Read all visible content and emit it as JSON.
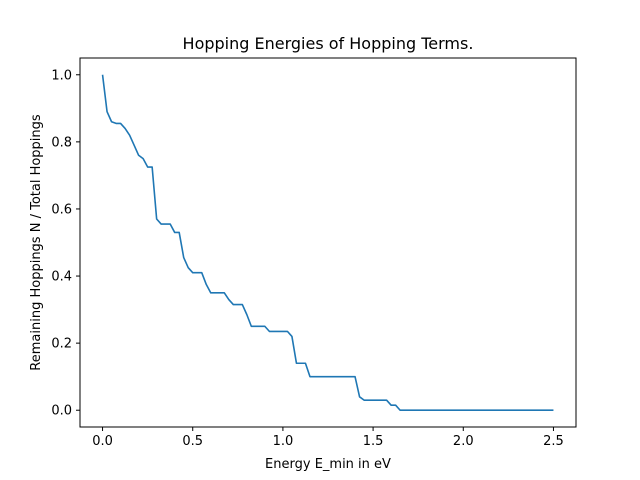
{
  "chart_data": {
    "type": "line",
    "title": "Hopping Energies of Hopping Terms.",
    "xlabel": "Energy E_min in eV",
    "ylabel": "Remaining Hoppings N / Total Hoppings",
    "xlim": [
      -0.125,
      2.625
    ],
    "ylim": [
      -0.05,
      1.05
    ],
    "xticks": [
      0.0,
      0.5,
      1.0,
      1.5,
      2.0,
      2.5
    ],
    "xtick_labels": [
      "0.0",
      "0.5",
      "1.0",
      "1.5",
      "2.0",
      "2.5"
    ],
    "yticks": [
      0.0,
      0.2,
      0.4,
      0.6,
      0.8,
      1.0
    ],
    "ytick_labels": [
      "0.0",
      "0.2",
      "0.4",
      "0.6",
      "0.8",
      "1.0"
    ],
    "grid": false,
    "colors": {
      "line": "#1f77b4"
    },
    "series": [
      {
        "x": [
          0.0,
          0.025,
          0.05,
          0.075,
          0.1,
          0.125,
          0.15,
          0.175,
          0.2,
          0.225,
          0.25,
          0.275,
          0.3,
          0.325,
          0.35,
          0.375,
          0.4,
          0.425,
          0.45,
          0.475,
          0.5,
          0.525,
          0.55,
          0.575,
          0.6,
          0.625,
          0.65,
          0.675,
          0.7,
          0.725,
          0.75,
          0.775,
          0.8,
          0.825,
          0.85,
          0.875,
          0.9,
          0.925,
          0.95,
          0.975,
          1.0,
          1.025,
          1.05,
          1.075,
          1.1,
          1.125,
          1.15,
          1.175,
          1.2,
          1.225,
          1.25,
          1.275,
          1.3,
          1.325,
          1.35,
          1.375,
          1.4,
          1.425,
          1.45,
          1.475,
          1.5,
          1.525,
          1.55,
          1.575,
          1.6,
          1.625,
          1.65,
          1.675,
          1.7,
          2.5
        ],
        "y": [
          1.0,
          0.89,
          0.86,
          0.855,
          0.855,
          0.84,
          0.82,
          0.79,
          0.76,
          0.75,
          0.725,
          0.725,
          0.57,
          0.555,
          0.555,
          0.555,
          0.53,
          0.53,
          0.455,
          0.425,
          0.41,
          0.41,
          0.41,
          0.375,
          0.35,
          0.35,
          0.35,
          0.35,
          0.33,
          0.315,
          0.315,
          0.315,
          0.285,
          0.25,
          0.25,
          0.25,
          0.25,
          0.235,
          0.235,
          0.235,
          0.235,
          0.235,
          0.22,
          0.14,
          0.14,
          0.14,
          0.1,
          0.1,
          0.1,
          0.1,
          0.1,
          0.1,
          0.1,
          0.1,
          0.1,
          0.1,
          0.1,
          0.04,
          0.03,
          0.03,
          0.03,
          0.03,
          0.03,
          0.03,
          0.015,
          0.015,
          0.0,
          0.0,
          0.0,
          0.0
        ]
      }
    ]
  }
}
